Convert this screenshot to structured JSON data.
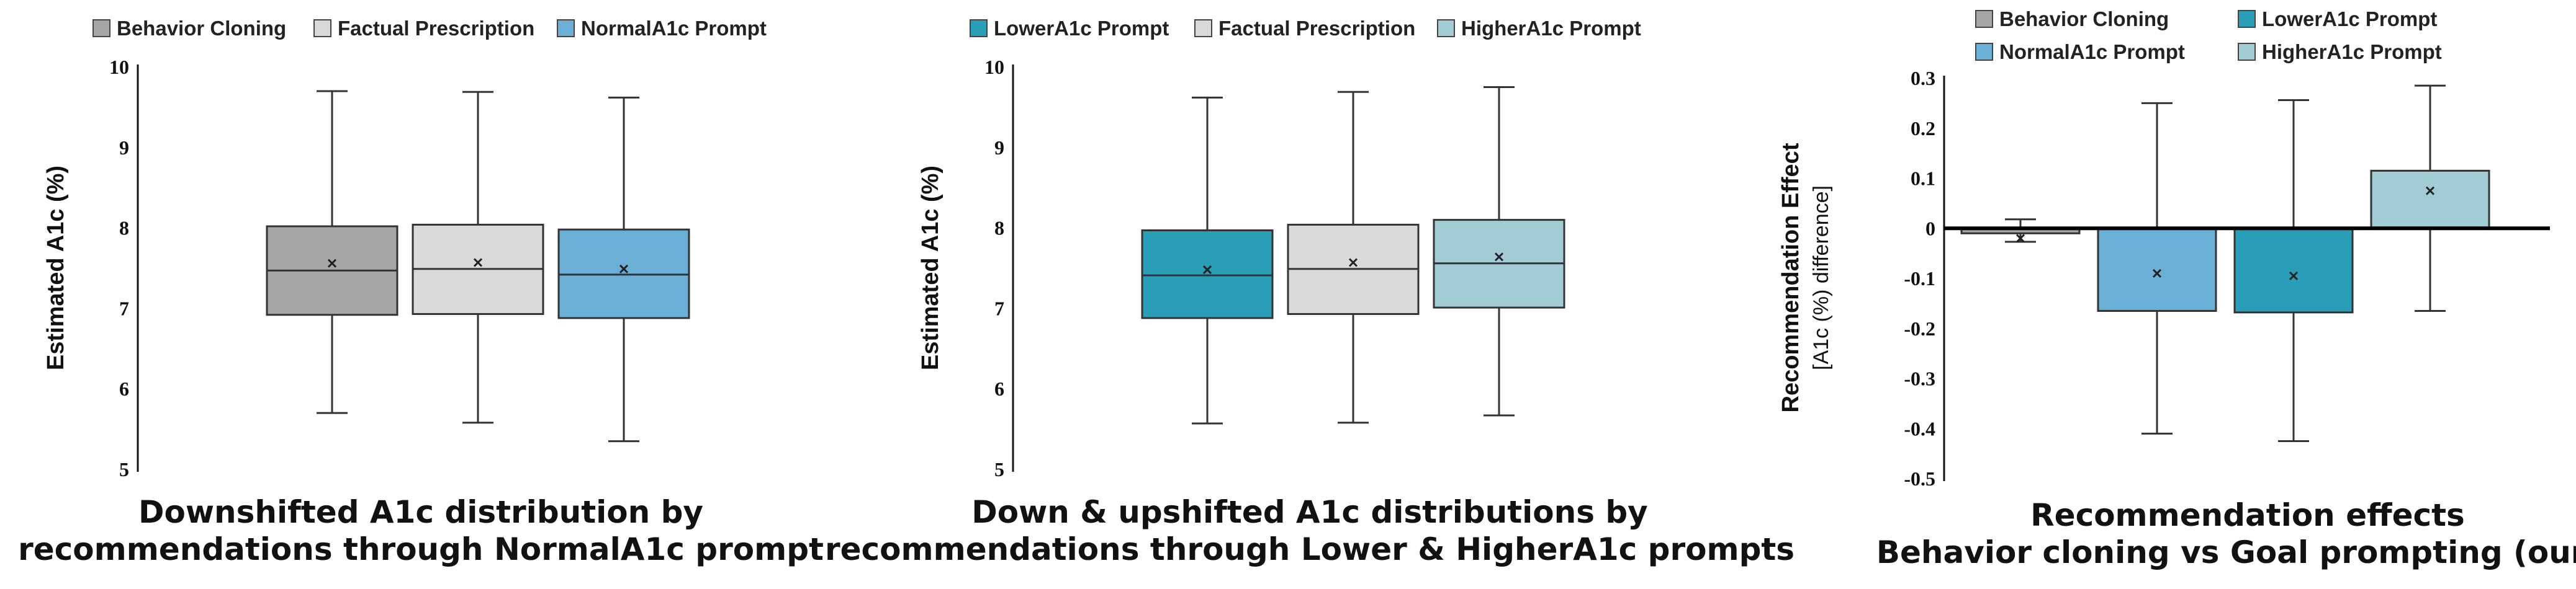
{
  "colors": {
    "behavior_cloning": "#a6a6a6",
    "factual_prescription": "#d9d9d9",
    "normal_a1c": "#6baed6",
    "lower_a1c": "#2b9eb7",
    "higher_a1c": "#a3cdd4"
  },
  "chart_data": [
    {
      "type": "box",
      "title": [
        "Downshifted A1c distribution by",
        "recommendations through NormalA1c prompt"
      ],
      "ylabel": "Estimated A1c (%)",
      "ylim": [
        5,
        10
      ],
      "yticks": [
        "5",
        "6",
        "7",
        "8",
        "9",
        "10"
      ],
      "legend": [
        {
          "label": "Behavior Cloning",
          "color": "#a6a6a6"
        },
        {
          "label": "Factual Prescription",
          "color": "#d9d9d9"
        },
        {
          "label": "NormalA1c Prompt",
          "color": "#6baed6"
        }
      ],
      "series": [
        {
          "name": "Behavior Cloning",
          "color": "#a6a6a6",
          "whisker_low": 5.7,
          "q1": 6.92,
          "median": 7.47,
          "q3": 8.02,
          "whisker_high": 9.7,
          "mean": 7.56
        },
        {
          "name": "Factual Prescription",
          "color": "#d9d9d9",
          "whisker_low": 5.58,
          "q1": 6.93,
          "median": 7.49,
          "q3": 8.04,
          "whisker_high": 9.69,
          "mean": 7.57
        },
        {
          "name": "NormalA1c Prompt",
          "color": "#6baed6",
          "whisker_low": 5.35,
          "q1": 6.88,
          "median": 7.42,
          "q3": 7.98,
          "whisker_high": 9.62,
          "mean": 7.49
        }
      ]
    },
    {
      "type": "box",
      "title": [
        "Down & upshifted A1c distributions by",
        "recommendations through Lower & HigherA1c prompts"
      ],
      "ylabel": "Estimated A1c (%)",
      "ylim": [
        5,
        10
      ],
      "yticks": [
        "5",
        "6",
        "7",
        "8",
        "9",
        "10"
      ],
      "legend": [
        {
          "label": "LowerA1c Prompt",
          "color": "#2b9eb7"
        },
        {
          "label": "Factual Prescription",
          "color": "#d9d9d9"
        },
        {
          "label": "HigherA1c Prompt",
          "color": "#a3cdd4"
        }
      ],
      "series": [
        {
          "name": "LowerA1c Prompt",
          "color": "#2b9eb7",
          "whisker_low": 5.57,
          "q1": 6.88,
          "median": 7.41,
          "q3": 7.97,
          "whisker_high": 9.62,
          "mean": 7.48
        },
        {
          "name": "Factual Prescription",
          "color": "#d9d9d9",
          "whisker_low": 5.58,
          "q1": 6.93,
          "median": 7.49,
          "q3": 8.04,
          "whisker_high": 9.69,
          "mean": 7.57
        },
        {
          "name": "HigherA1c Prompt",
          "color": "#a3cdd4",
          "whisker_low": 5.67,
          "q1": 7.01,
          "median": 7.56,
          "q3": 8.1,
          "whisker_high": 9.75,
          "mean": 7.64
        }
      ]
    },
    {
      "type": "bar",
      "title": [
        "Recommendation effects",
        "Behavior cloning    vs    Goal prompting (ours)"
      ],
      "ylabel": "Recommendation Effect",
      "ylabel2": "[A1c (%) difference]",
      "ylim": [
        -0.5,
        0.3
      ],
      "yticks": [
        "-0.5",
        "-0.4",
        "-0.3",
        "-0.2",
        "-0.1",
        "0",
        "0.1",
        "0.2",
        "0.3"
      ],
      "legend": [
        {
          "label": "Behavior Cloning",
          "color": "#a6a6a6"
        },
        {
          "label": "LowerA1c Prompt",
          "color": "#2b9eb7"
        },
        {
          "label": "NormalA1c Prompt",
          "color": "#6baed6"
        },
        {
          "label": "HigherA1c Prompt",
          "color": "#a3cdd4"
        }
      ],
      "series": [
        {
          "name": "Behavior Cloning",
          "color": "#a6a6a6",
          "value": -0.01,
          "mean": -0.02,
          "err_low": -0.027,
          "err_high": 0.018
        },
        {
          "name": "NormalA1c Prompt",
          "color": "#6baed6",
          "value": -0.165,
          "mean": -0.09,
          "err_low": -0.41,
          "err_high": 0.25
        },
        {
          "name": "LowerA1c Prompt",
          "color": "#2b9eb7",
          "value": -0.168,
          "mean": -0.095,
          "err_low": -0.425,
          "err_high": 0.256
        },
        {
          "name": "HigherA1c Prompt",
          "color": "#a3cdd4",
          "value": 0.115,
          "mean": 0.075,
          "err_low": -0.165,
          "err_high": 0.285
        }
      ]
    }
  ]
}
